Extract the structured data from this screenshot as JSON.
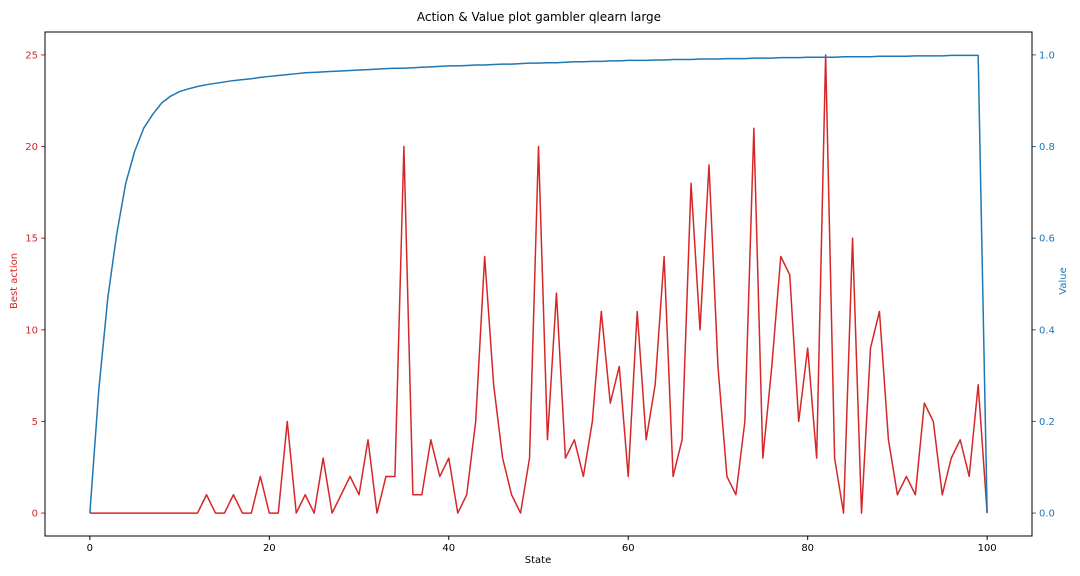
{
  "chart_data": {
    "type": "line",
    "title": "Action & Value plot gambler qlearn large",
    "xlabel": "State",
    "ylabel_left": "Best action",
    "ylabel_right": "Value",
    "xlim": [
      -5,
      105
    ],
    "ylim_left": [
      -1.25,
      26.25
    ],
    "ylim_right": [
      -0.05,
      1.05
    ],
    "xticks": [
      0,
      20,
      40,
      60,
      80,
      100
    ],
    "yticks_left": [
      0,
      5,
      10,
      15,
      20,
      25
    ],
    "yticks_right": [
      0.0,
      0.2,
      0.4,
      0.6,
      0.8,
      1.0
    ],
    "grid": false,
    "colors": {
      "left": "#d62728",
      "right": "#1f77b4"
    },
    "series": [
      {
        "axis": "left",
        "values": [
          0,
          0,
          0,
          0,
          0,
          0,
          0,
          0,
          0,
          0,
          0,
          0,
          0,
          1,
          0,
          0,
          1,
          0,
          0,
          2,
          0,
          0,
          5,
          0,
          1,
          0,
          3,
          0,
          1,
          2,
          1,
          4,
          0,
          2,
          2,
          20,
          1,
          1,
          4,
          2,
          3,
          0,
          1,
          5,
          14,
          7,
          3,
          1,
          0,
          3,
          20,
          4,
          12,
          3,
          4,
          2,
          5,
          11,
          6,
          8,
          2,
          11,
          4,
          7,
          14,
          2,
          4,
          18,
          10,
          19,
          8,
          2,
          1,
          5,
          21,
          3,
          8,
          14,
          13,
          5,
          9,
          3,
          25,
          3,
          0,
          15,
          0,
          9,
          11,
          4,
          1,
          2,
          1,
          6,
          5,
          1,
          3,
          4,
          2,
          7,
          0
        ]
      },
      {
        "axis": "right",
        "values": [
          0.0,
          0.27,
          0.47,
          0.61,
          0.72,
          0.79,
          0.84,
          0.87,
          0.895,
          0.91,
          0.92,
          0.926,
          0.931,
          0.935,
          0.938,
          0.941,
          0.944,
          0.946,
          0.948,
          0.951,
          0.953,
          0.955,
          0.957,
          0.959,
          0.961,
          0.962,
          0.963,
          0.964,
          0.965,
          0.966,
          0.967,
          0.968,
          0.969,
          0.97,
          0.971,
          0.971,
          0.972,
          0.973,
          0.974,
          0.975,
          0.976,
          0.976,
          0.977,
          0.978,
          0.978,
          0.979,
          0.98,
          0.98,
          0.981,
          0.982,
          0.982,
          0.983,
          0.983,
          0.984,
          0.985,
          0.985,
          0.986,
          0.986,
          0.987,
          0.987,
          0.988,
          0.988,
          0.988,
          0.989,
          0.989,
          0.99,
          0.99,
          0.99,
          0.991,
          0.991,
          0.991,
          0.992,
          0.992,
          0.992,
          0.993,
          0.993,
          0.993,
          0.994,
          0.994,
          0.994,
          0.995,
          0.995,
          0.995,
          0.995,
          0.996,
          0.996,
          0.996,
          0.996,
          0.997,
          0.997,
          0.997,
          0.997,
          0.998,
          0.998,
          0.998,
          0.998,
          0.999,
          0.999,
          0.999,
          0.999,
          0.0
        ]
      }
    ]
  }
}
